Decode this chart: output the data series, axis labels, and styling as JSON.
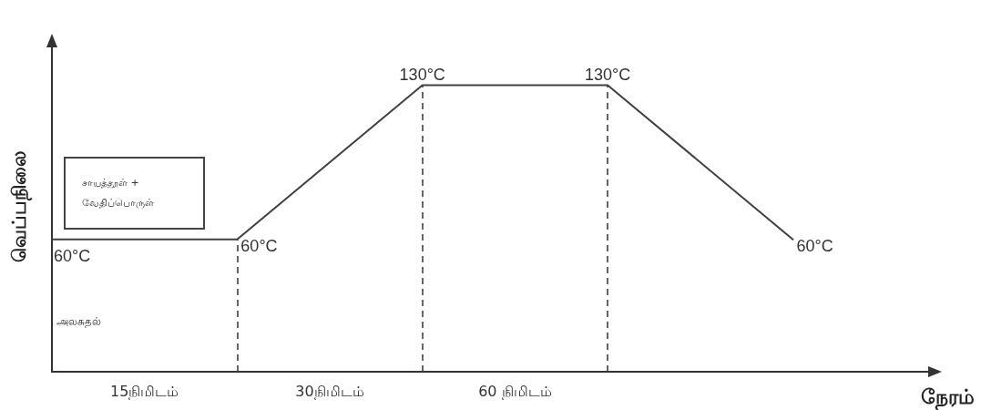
{
  "chart_data": {
    "type": "line",
    "xlabel": "நேரம்",
    "ylabel": "வெப்பநிலை",
    "categories": [
      null,
      null,
      null,
      null,
      null
    ],
    "values": [
      60,
      60,
      130,
      130,
      60
    ],
    "value_labels": [
      "60°C",
      "60°C",
      "130°C",
      "130°C",
      "60°C"
    ],
    "color": "#404040",
    "ylim": [
      0,
      150
    ],
    "marker": "none",
    "line_style": "solid",
    "annotations": [
      "சாயத்தூள் + வேதிப்பொருள்",
      "அலசுதல்",
      "15நிமிடம்",
      "30நிமிடம்",
      "60 நிமிடம்"
    ]
  }
}
